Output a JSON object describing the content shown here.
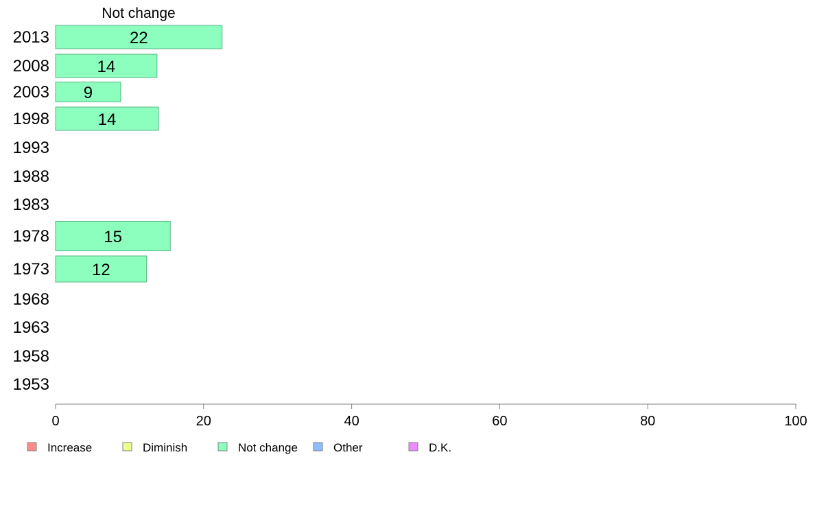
{
  "chart_data": {
    "type": "bar",
    "orientation": "horizontal",
    "title": "Not change",
    "categories": [
      "2013",
      "2008",
      "2003",
      "1998",
      "1993",
      "1988",
      "1983",
      "1978",
      "1973",
      "1968",
      "1963",
      "1958",
      "1953"
    ],
    "series": [
      {
        "name": "Not change",
        "color": "#8cffbf",
        "values": [
          22.5,
          13.7,
          8.8,
          13.9,
          null,
          null,
          null,
          15.5,
          12.3,
          null,
          null,
          null,
          null
        ],
        "labels": [
          "22",
          "14",
          "9",
          "14",
          "",
          "",
          "",
          "15",
          "12",
          "",
          "",
          "",
          ""
        ]
      }
    ],
    "xlim": [
      0,
      100
    ],
    "xticks": [
      0,
      20,
      40,
      60,
      80,
      100
    ],
    "grid": false,
    "legend_position": "bottom",
    "legend": [
      {
        "label": "Increase",
        "color": "#ff8c8c"
      },
      {
        "label": "Diminish",
        "color": "#eeff8c"
      },
      {
        "label": "Not change",
        "color": "#8cffbf"
      },
      {
        "label": "Other",
        "color": "#8cbfff"
      },
      {
        "label": "D.K.",
        "color": "#ee8cff"
      }
    ]
  }
}
